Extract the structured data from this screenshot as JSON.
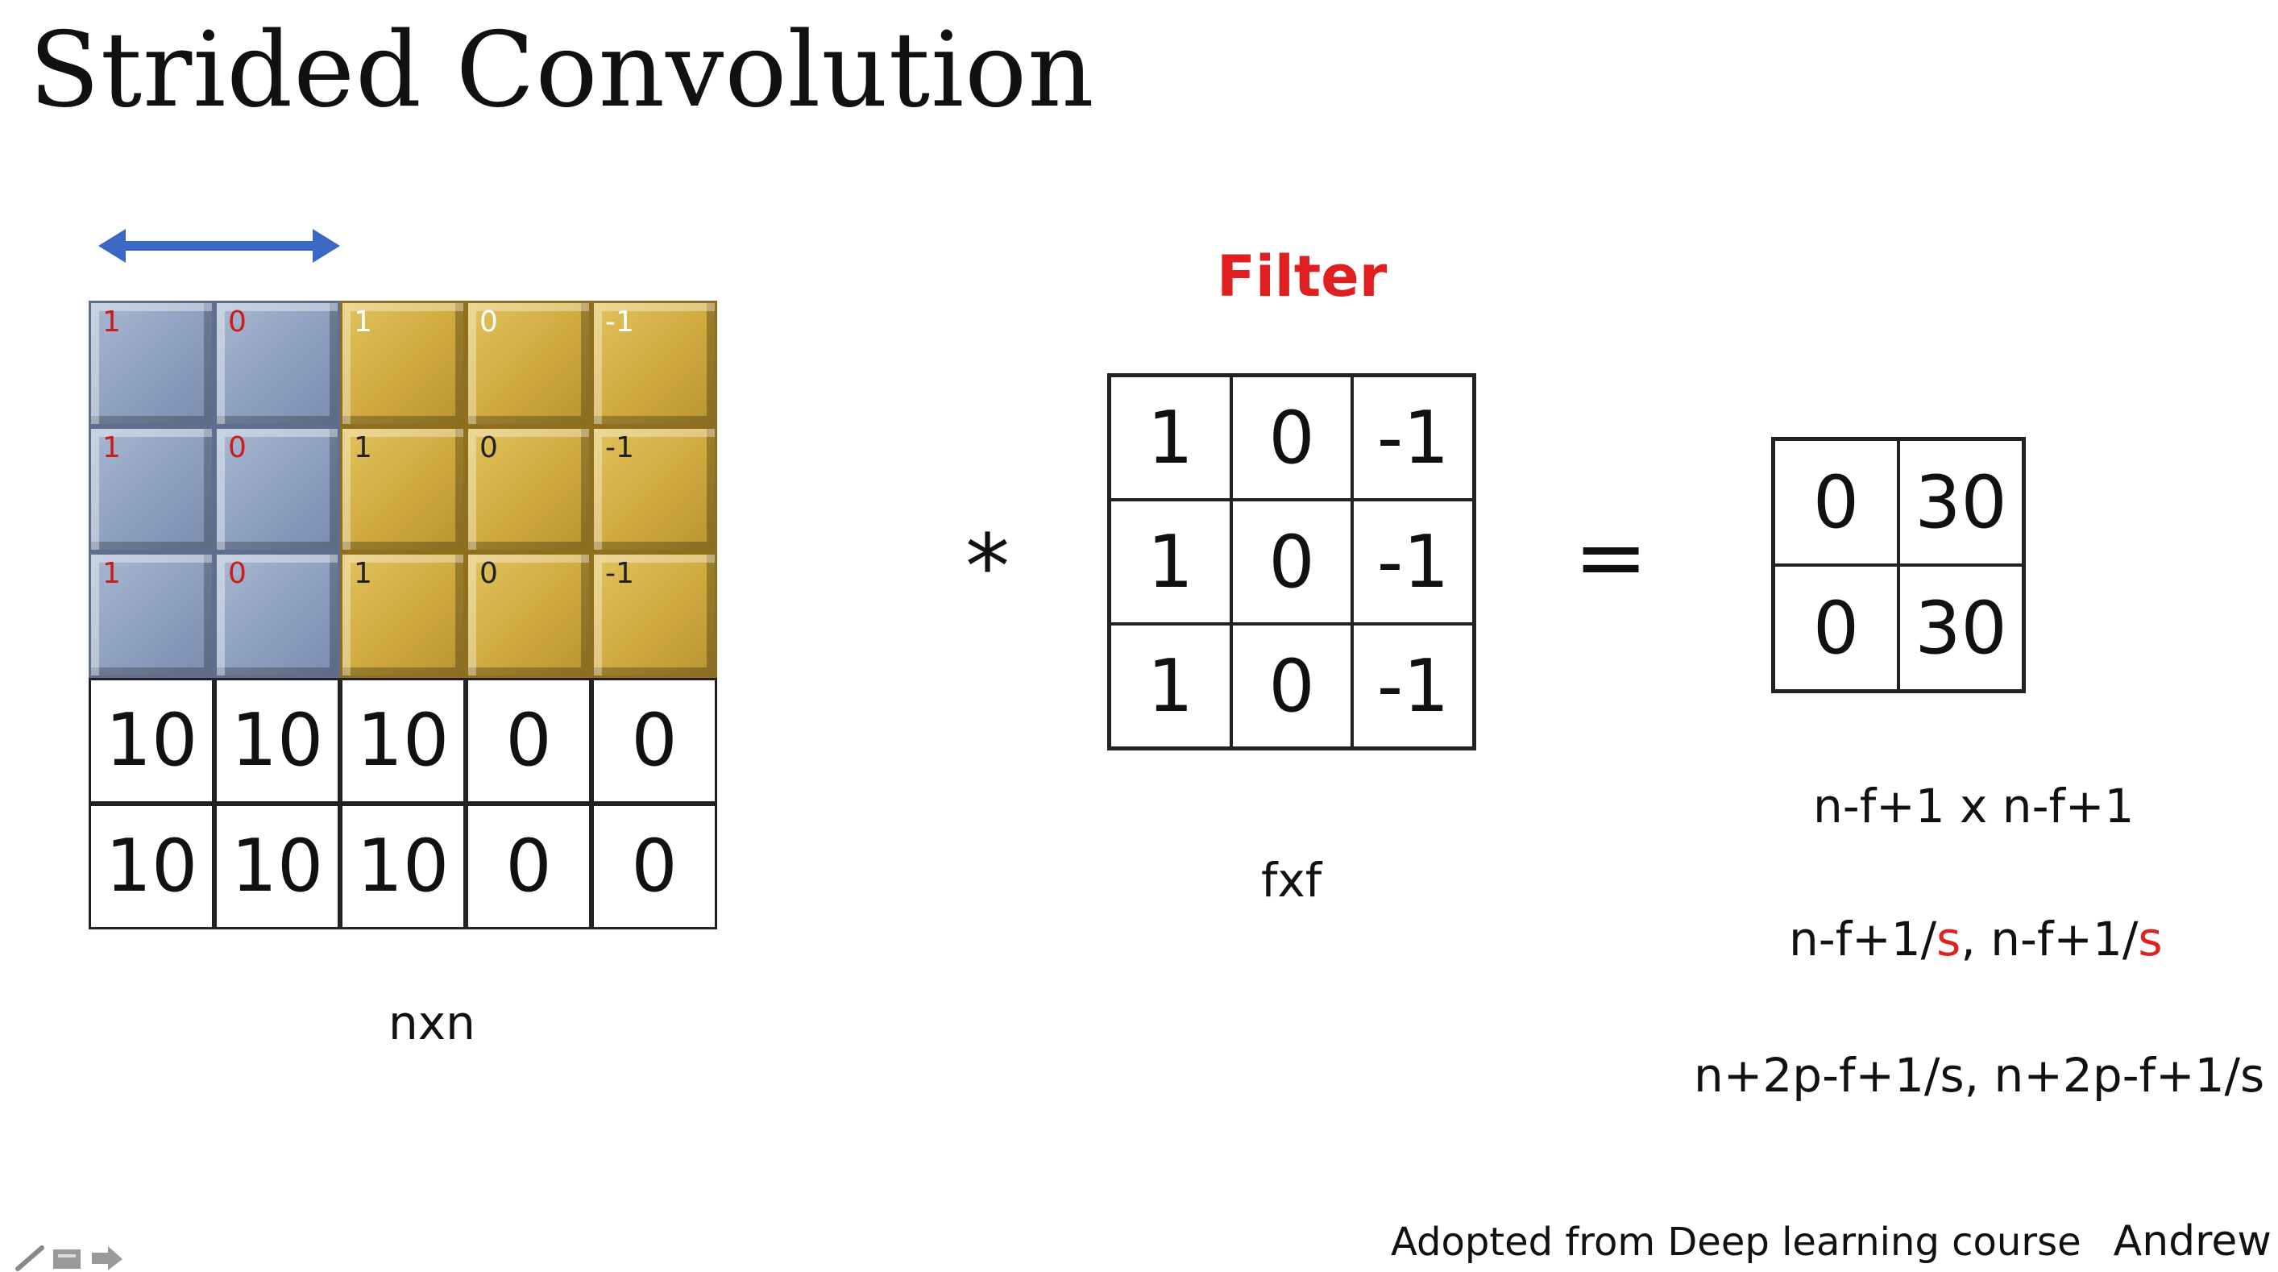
{
  "title": "Strided Convolution",
  "input": {
    "caption": "nxn",
    "rows": [
      [
        "",
        "",
        "",
        "",
        ""
      ],
      [
        "",
        "",
        "",
        "",
        ""
      ],
      [
        "",
        "",
        "",
        "",
        ""
      ],
      [
        "10",
        "10",
        "10",
        "0",
        "0"
      ],
      [
        "10",
        "10",
        "10",
        "0",
        "0"
      ]
    ],
    "window_weights": [
      [
        "1",
        "0",
        "1",
        "0",
        "-1"
      ],
      [
        "1",
        "0",
        "1",
        "0",
        "-1"
      ],
      [
        "1",
        "0",
        "1",
        "0",
        "-1"
      ]
    ],
    "colors": {
      "previous_window": "#8c9fbf",
      "current_window": "#cfa93e",
      "stride_arrow": "#3a68c4"
    }
  },
  "operator": "*",
  "filter": {
    "label": "Filter",
    "label_color": "#e02020",
    "caption": "fxf",
    "rows": [
      [
        "1",
        "0",
        "-1"
      ],
      [
        "1",
        "0",
        "-1"
      ],
      [
        "1",
        "0",
        "-1"
      ]
    ]
  },
  "equals": "=",
  "output": {
    "rows": [
      [
        "0",
        "30"
      ],
      [
        "0",
        "30"
      ]
    ]
  },
  "formulas": {
    "f1": "n-f+1 x n-f+1",
    "f2": {
      "a": "n-f+1/",
      "a_s": "s",
      "sep": ", ",
      "b": "n-f+1/",
      "b_s": "s"
    },
    "f3": "n+2p-f+1/s, n+2p-f+1/s"
  },
  "footer": {
    "credit": "Adopted from Deep learning course",
    "author": "Andrew Ng"
  }
}
